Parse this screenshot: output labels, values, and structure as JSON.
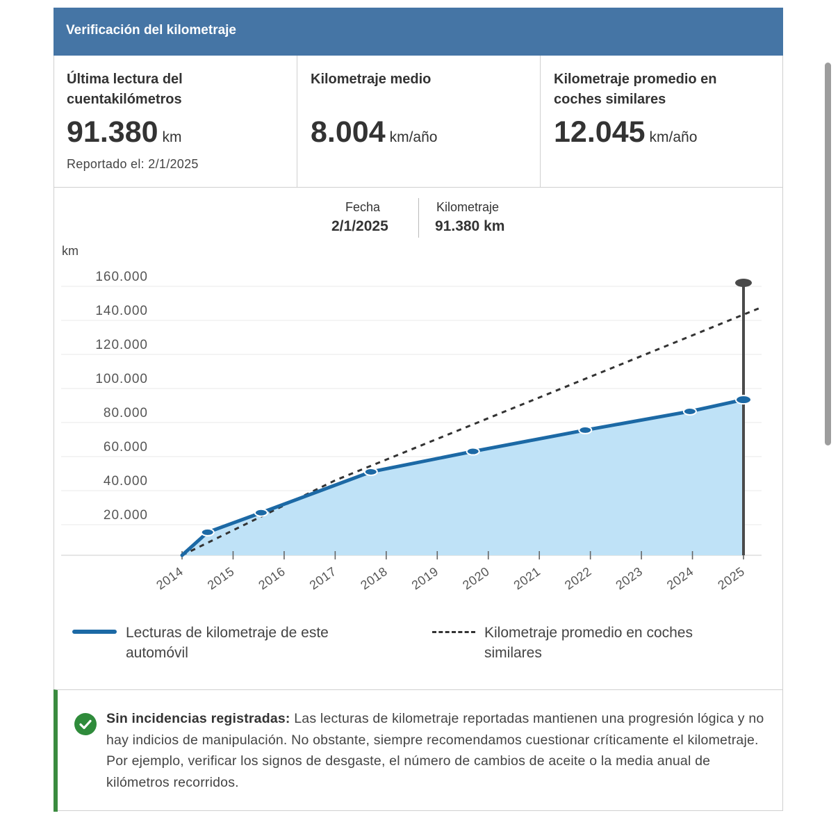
{
  "header": {
    "title": "Verificación del kilometraje"
  },
  "stats": [
    {
      "label": "Última lectura del cuentakilómetros",
      "value": "91.380",
      "unit": "km",
      "sub": "Reportado el: 2/1/2025"
    },
    {
      "label": "Kilometraje medio",
      "value": "8.004",
      "unit": "km/año"
    },
    {
      "label": "Kilometraje promedio en coches similares",
      "value": "12.045",
      "unit": "km/año"
    }
  ],
  "tooltip": {
    "date_label": "Fecha",
    "date_value": "2/1/2025",
    "km_label": "Kilometraje",
    "km_value": "91.380 km"
  },
  "chart_data": {
    "type": "area",
    "title": "",
    "ylabel": "km",
    "xlabel": "",
    "ylim": [
      0,
      160000
    ],
    "xlim": [
      2014,
      2025
    ],
    "y_ticks": [
      20000,
      40000,
      60000,
      80000,
      100000,
      120000,
      140000,
      160000
    ],
    "y_tick_labels": [
      "20.000",
      "40.000",
      "60.000",
      "80.000",
      "100.000",
      "120.000",
      "140.000",
      "160.000"
    ],
    "x_ticks": [
      2014,
      2015,
      2016,
      2017,
      2018,
      2019,
      2020,
      2021,
      2022,
      2023,
      2024,
      2025
    ],
    "x_tick_labels": [
      "2014",
      "2015",
      "2016",
      "2017",
      "2018",
      "2019",
      "2020",
      "2021",
      "2022",
      "2023",
      "2024",
      "2025"
    ],
    "series": [
      {
        "name": "Lecturas de kilometraje de este automóvil",
        "style": "solid",
        "color": "#1c69a5",
        "fill": "#bfe2f7",
        "x": [
          2014,
          2014.5,
          2015.55,
          2017.7,
          2019.7,
          2021.9,
          2023.95,
          2025
        ],
        "y": [
          0,
          13500,
          25000,
          49000,
          61000,
          73500,
          84500,
          91380
        ],
        "markers": [
          2014.5,
          2015.55,
          2017.7,
          2019.7,
          2021.9,
          2023.95,
          2025
        ]
      },
      {
        "name": "Kilometraje promedio en coches similares",
        "style": "dashed",
        "color": "#333333",
        "x": [
          2014,
          2017,
          2025.3
        ],
        "y": [
          0,
          44000,
          145000
        ]
      }
    ],
    "highlight": {
      "x": 2025,
      "y": 91380,
      "guide_top": 160000
    }
  },
  "legend": [
    {
      "label": "Lecturas de kilometraje de este automóvil"
    },
    {
      "label": "Kilometraje promedio en coches similares"
    }
  ],
  "alert": {
    "title": "Sin incidencias registradas:",
    "text": "Las lecturas de kilometraje reportadas mantienen una progresión lógica y no hay indicios de manipulación. No obstante, siempre recomendamos cuestionar críticamente el kilometraje. Por ejemplo, verificar los signos de desgaste, el número de cambios de aceite o la media anual de kilómetros recorridos."
  }
}
